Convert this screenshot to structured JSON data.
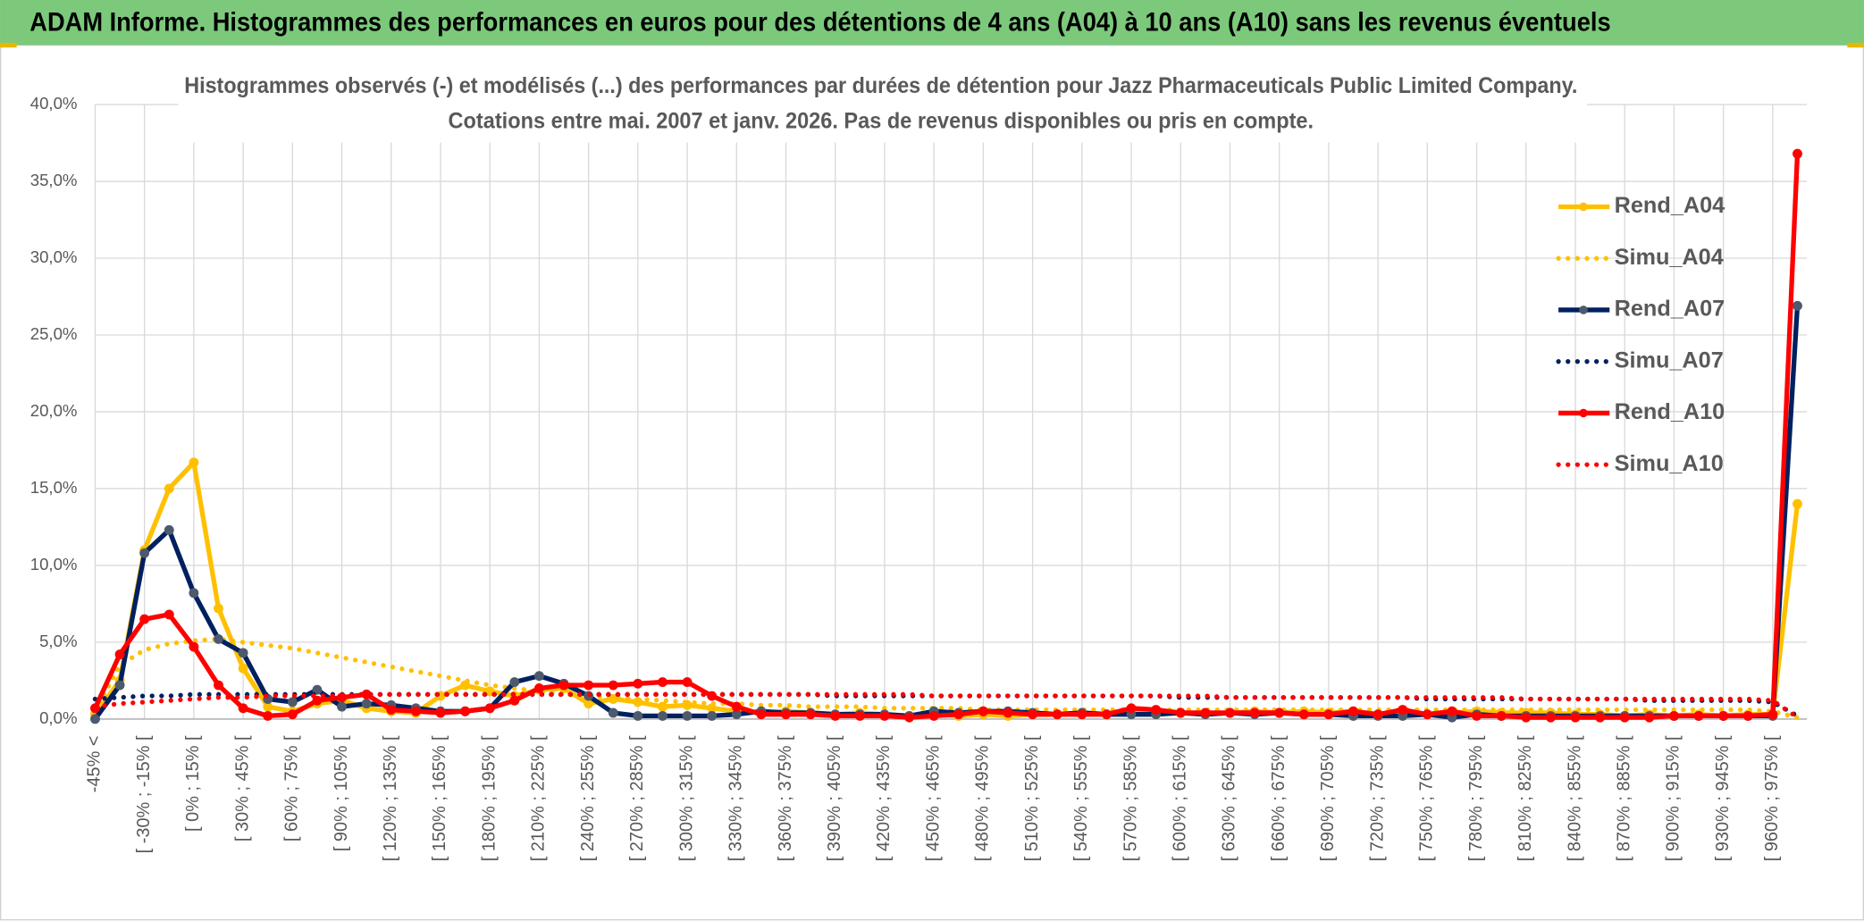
{
  "header": {
    "title": "ADAM Informe. Histogrammes des performances en euros pour des détentions de 4 ans (A04) à 10 ans (A10) sans les revenus éventuels"
  },
  "chart_data": {
    "type": "line",
    "title": "Histogrammes observés (-) et modélisés (...) des performances par durées de détention pour Jazz Pharmaceuticals Public Limited Company.",
    "subtitle": "Cotations entre mai. 2007 et janv. 2026. Pas de revenus disponibles ou pris en compte.",
    "categories": [
      "-45% <",
      null,
      "[ -30% ; -15% [",
      null,
      "[ 0% ; 15% [",
      null,
      "[ 30% ; 45% [",
      null,
      "[ 60% ; 75% [",
      null,
      "[ 90% ; 105% [",
      null,
      "[ 120% ; 135% [",
      null,
      "[ 150% ; 165% [",
      null,
      "[ 180% ; 195% [",
      null,
      "[ 210% ; 225% [",
      null,
      "[ 240% ; 255% [",
      null,
      "[ 270% ; 285% [",
      null,
      "[ 300% ; 315% [",
      null,
      "[ 330% ; 345% [",
      null,
      "[ 360% ; 375% [",
      null,
      "[ 390% ; 405% [",
      null,
      "[ 420% ; 435% [",
      null,
      "[ 450% ; 465% [",
      null,
      "[ 480% ; 495% [",
      null,
      "[ 510% ; 525% [",
      null,
      "[ 540% ; 555% [",
      null,
      "[ 570% ; 585% [",
      null,
      "[ 600% ; 615% [",
      null,
      "[ 630% ; 645% [",
      null,
      "[ 660% ; 675% [",
      null,
      "[ 690% ; 705% [",
      null,
      "[ 720% ; 735% [",
      null,
      "[ 750% ; 765% [",
      null,
      "[ 780% ; 795% [",
      null,
      "[ 810% ; 825% [",
      null,
      "[ 840% ; 855% [",
      null,
      "[ 870% ; 885% [",
      null,
      "[ 900% ; 915% [",
      null,
      "[ 930% ; 945% [",
      null,
      "[ 960% ; 975% [",
      null
    ],
    "series": [
      {
        "name": "Rend_A04",
        "color": "#ffc000",
        "style": "solid",
        "markers": true,
        "values": [
          0.3,
          2.5,
          11.0,
          15.0,
          16.7,
          7.2,
          3.3,
          0.8,
          0.5,
          1.0,
          1.2,
          0.7,
          0.5,
          0.4,
          1.5,
          2.2,
          1.8,
          1.5,
          1.9,
          2.0,
          1.0,
          1.3,
          1.1,
          0.8,
          0.9,
          0.7,
          0.5,
          0.4,
          0.5,
          0.4,
          0.3,
          0.4,
          0.3,
          0.2,
          0.3,
          0.2,
          0.3,
          0.2,
          0.3,
          0.3,
          0.4,
          0.3,
          0.5,
          0.3,
          0.4,
          0.3,
          0.4,
          0.5,
          0.4,
          0.5,
          0.4,
          0.5,
          0.3,
          0.4,
          0.3,
          0.4,
          0.5,
          0.4,
          0.4,
          0.4,
          0.3,
          0.3,
          0.2,
          0.3,
          0.2,
          0.3,
          0.2,
          0.3,
          0.3,
          14.0
        ]
      },
      {
        "name": "Simu_A04",
        "color": "#ffc000",
        "style": "dotted",
        "markers": false,
        "values": [
          0.5,
          3.5,
          4.5,
          4.9,
          5.1,
          5.2,
          5.0,
          4.8,
          4.6,
          4.3,
          4.0,
          3.7,
          3.4,
          3.1,
          2.8,
          2.5,
          2.2,
          2.0,
          1.8,
          1.6,
          1.5,
          1.4,
          1.3,
          1.2,
          1.1,
          1.0,
          1.0,
          0.9,
          0.9,
          0.8,
          0.8,
          0.8,
          0.7,
          0.7,
          0.7,
          0.7,
          0.6,
          0.6,
          0.6,
          0.6,
          0.6,
          0.6,
          0.6,
          0.6,
          0.6,
          0.6,
          0.6,
          0.6,
          0.6,
          0.6,
          0.6,
          0.6,
          0.6,
          0.6,
          0.6,
          0.6,
          0.6,
          0.6,
          0.6,
          0.6,
          0.6,
          0.6,
          0.6,
          0.6,
          0.6,
          0.6,
          0.6,
          0.6,
          0.5,
          0.1
        ]
      },
      {
        "name": "Rend_A07",
        "color": "#002060",
        "marker_color": "#4d5a6e",
        "style": "solid",
        "markers": true,
        "values": [
          0.0,
          2.2,
          10.8,
          12.3,
          8.2,
          5.2,
          4.3,
          1.3,
          1.1,
          1.9,
          0.8,
          1.0,
          0.9,
          0.7,
          0.5,
          0.5,
          0.7,
          2.4,
          2.8,
          2.3,
          1.5,
          0.4,
          0.2,
          0.2,
          0.2,
          0.2,
          0.3,
          0.5,
          0.4,
          0.4,
          0.3,
          0.3,
          0.3,
          0.2,
          0.5,
          0.4,
          0.5,
          0.5,
          0.4,
          0.3,
          0.4,
          0.3,
          0.3,
          0.3,
          0.4,
          0.3,
          0.4,
          0.3,
          0.4,
          0.3,
          0.3,
          0.2,
          0.2,
          0.2,
          0.3,
          0.1,
          0.3,
          0.2,
          0.2,
          0.2,
          0.2,
          0.2,
          0.2,
          0.2,
          0.2,
          0.2,
          0.2,
          0.2,
          0.2,
          26.9
        ]
      },
      {
        "name": "Simu_A07",
        "color": "#002060",
        "style": "dotted",
        "markers": false,
        "values": [
          1.3,
          1.4,
          1.5,
          1.5,
          1.6,
          1.6,
          1.6,
          1.6,
          1.6,
          1.6,
          1.6,
          1.6,
          1.6,
          1.6,
          1.6,
          1.6,
          1.6,
          1.6,
          1.6,
          1.6,
          1.6,
          1.6,
          1.6,
          1.6,
          1.6,
          1.6,
          1.6,
          1.6,
          1.6,
          1.6,
          1.5,
          1.5,
          1.5,
          1.5,
          1.5,
          1.5,
          1.5,
          1.5,
          1.5,
          1.5,
          1.5,
          1.5,
          1.5,
          1.5,
          1.4,
          1.4,
          1.4,
          1.4,
          1.4,
          1.4,
          1.4,
          1.4,
          1.4,
          1.4,
          1.3,
          1.3,
          1.3,
          1.3,
          1.3,
          1.3,
          1.3,
          1.3,
          1.3,
          1.2,
          1.2,
          1.2,
          1.2,
          1.2,
          1.1,
          0.2
        ]
      },
      {
        "name": "Rend_A10",
        "color": "#ff0000",
        "style": "solid",
        "markers": true,
        "values": [
          0.7,
          4.2,
          6.5,
          6.8,
          4.7,
          2.2,
          0.7,
          0.2,
          0.3,
          1.2,
          1.4,
          1.6,
          0.6,
          0.5,
          0.4,
          0.5,
          0.7,
          1.2,
          2.0,
          2.2,
          2.2,
          2.2,
          2.3,
          2.4,
          2.4,
          1.5,
          0.8,
          0.3,
          0.3,
          0.3,
          0.2,
          0.2,
          0.2,
          0.1,
          0.2,
          0.3,
          0.5,
          0.4,
          0.3,
          0.3,
          0.3,
          0.3,
          0.7,
          0.6,
          0.4,
          0.4,
          0.4,
          0.4,
          0.4,
          0.3,
          0.3,
          0.5,
          0.3,
          0.6,
          0.3,
          0.5,
          0.2,
          0.2,
          0.1,
          0.1,
          0.1,
          0.1,
          0.1,
          0.1,
          0.2,
          0.2,
          0.2,
          0.2,
          0.3,
          36.8
        ]
      },
      {
        "name": "Simu_A10",
        "color": "#ff0000",
        "style": "dotted",
        "markers": false,
        "values": [
          0.8,
          1.0,
          1.1,
          1.2,
          1.3,
          1.4,
          1.4,
          1.5,
          1.5,
          1.5,
          1.5,
          1.6,
          1.6,
          1.6,
          1.6,
          1.6,
          1.6,
          1.6,
          1.6,
          1.6,
          1.6,
          1.6,
          1.6,
          1.6,
          1.6,
          1.6,
          1.6,
          1.6,
          1.6,
          1.6,
          1.6,
          1.6,
          1.6,
          1.6,
          1.5,
          1.5,
          1.5,
          1.5,
          1.5,
          1.5,
          1.5,
          1.5,
          1.5,
          1.5,
          1.5,
          1.5,
          1.4,
          1.4,
          1.4,
          1.4,
          1.4,
          1.4,
          1.4,
          1.4,
          1.4,
          1.4,
          1.4,
          1.4,
          1.3,
          1.3,
          1.3,
          1.3,
          1.3,
          1.3,
          1.3,
          1.3,
          1.3,
          1.3,
          1.2,
          0.1
        ]
      }
    ],
    "ylim": [
      0,
      40
    ],
    "yticks": [
      {
        "value": 0,
        "label": "0,0%"
      },
      {
        "value": 5,
        "label": "5,0%"
      },
      {
        "value": 10,
        "label": "10,0%"
      },
      {
        "value": 15,
        "label": "15,0%"
      },
      {
        "value": 20,
        "label": "20,0%"
      },
      {
        "value": 25,
        "label": "25,0%"
      },
      {
        "value": 30,
        "label": "30,0%"
      },
      {
        "value": 35,
        "label": "35,0%"
      },
      {
        "value": 40,
        "label": "40,0%"
      }
    ],
    "grid": true,
    "legend": "right"
  }
}
